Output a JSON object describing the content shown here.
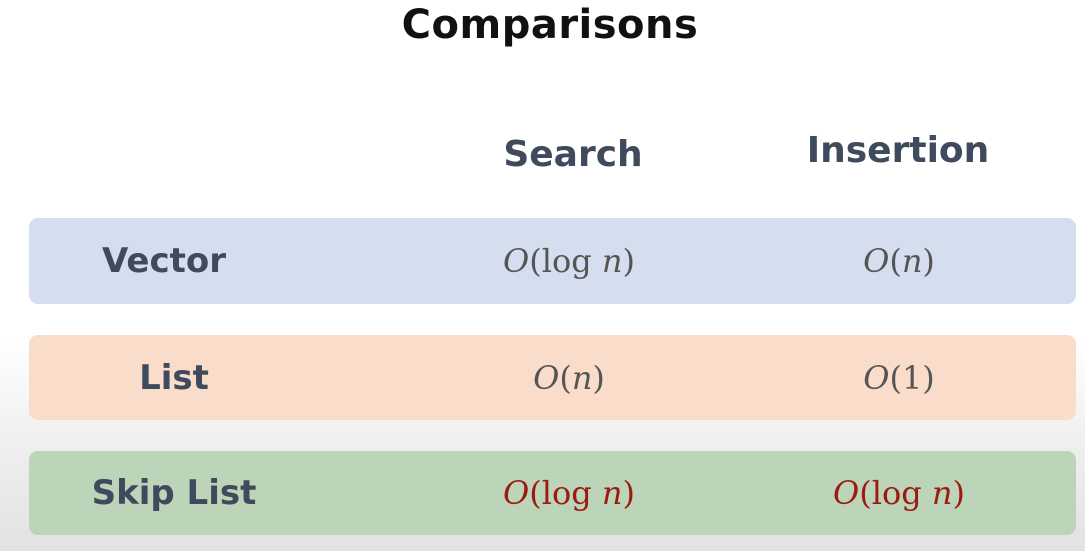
{
  "title": "Comparisons",
  "columns": {
    "search": "Search",
    "insertion": "Insertion"
  },
  "rows": [
    {
      "label": "Vector",
      "search": "O(log n)",
      "insertion": "O(n)"
    },
    {
      "label": "List",
      "search": "O(n)",
      "insertion": "O(1)"
    },
    {
      "label": "Skip List",
      "search": "O(log n)",
      "insertion": "O(log n)"
    }
  ],
  "colors": {
    "vector_row": "#d4deef",
    "list_row": "#f9dcca",
    "skiplist_row": "#bcd4b8",
    "highlight_text": "#9b1a12",
    "label_text": "#3f4a5c"
  }
}
